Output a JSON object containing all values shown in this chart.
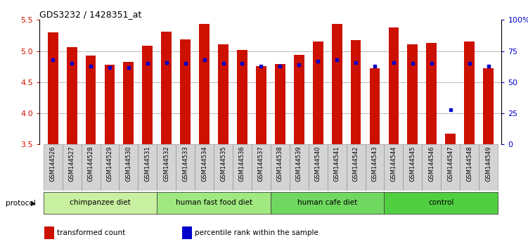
{
  "title": "GDS3232 / 1428351_at",
  "samples": [
    "GSM144526",
    "GSM144527",
    "GSM144528",
    "GSM144529",
    "GSM144530",
    "GSM144531",
    "GSM144532",
    "GSM144533",
    "GSM144534",
    "GSM144535",
    "GSM144536",
    "GSM144537",
    "GSM144538",
    "GSM144539",
    "GSM144540",
    "GSM144541",
    "GSM144542",
    "GSM144543",
    "GSM144544",
    "GSM144545",
    "GSM144546",
    "GSM144547",
    "GSM144548",
    "GSM144549"
  ],
  "red_values": [
    5.3,
    5.06,
    4.93,
    4.78,
    4.83,
    5.08,
    5.31,
    5.19,
    5.44,
    5.11,
    5.02,
    4.76,
    4.79,
    4.94,
    5.15,
    5.44,
    5.18,
    4.72,
    5.38,
    5.11,
    5.13,
    3.67,
    5.15,
    4.72
  ],
  "blue_percentiles": [
    68,
    65,
    63,
    62,
    62,
    65,
    66,
    65,
    68,
    65,
    65,
    63,
    63,
    64,
    67,
    68,
    66,
    63,
    66,
    65,
    65,
    28,
    65,
    63
  ],
  "groups": [
    {
      "label": "chimpanzee diet",
      "start": 0,
      "end": 5,
      "color": "#c8f0a0"
    },
    {
      "label": "human fast food diet",
      "start": 6,
      "end": 11,
      "color": "#a0e880"
    },
    {
      "label": "human cafe diet",
      "start": 12,
      "end": 17,
      "color": "#70d860"
    },
    {
      "label": "control",
      "start": 18,
      "end": 23,
      "color": "#50d040"
    }
  ],
  "ylim_left": [
    3.5,
    5.5
  ],
  "ylim_right": [
    0,
    100
  ],
  "yticks_left": [
    3.5,
    4.0,
    4.5,
    5.0,
    5.5
  ],
  "yticks_right": [
    0,
    25,
    50,
    75,
    100
  ],
  "ytick_labels_right": [
    "0",
    "25",
    "50",
    "75",
    "100%"
  ],
  "bar_color": "#cc1100",
  "dot_color": "#0000cc",
  "bar_width": 0.55,
  "background_color": "#ffffff",
  "protocol_label": "protocol",
  "legend_items": [
    {
      "color": "#cc1100",
      "label": "transformed count"
    },
    {
      "color": "#0000cc",
      "label": "percentile rank within the sample"
    }
  ]
}
